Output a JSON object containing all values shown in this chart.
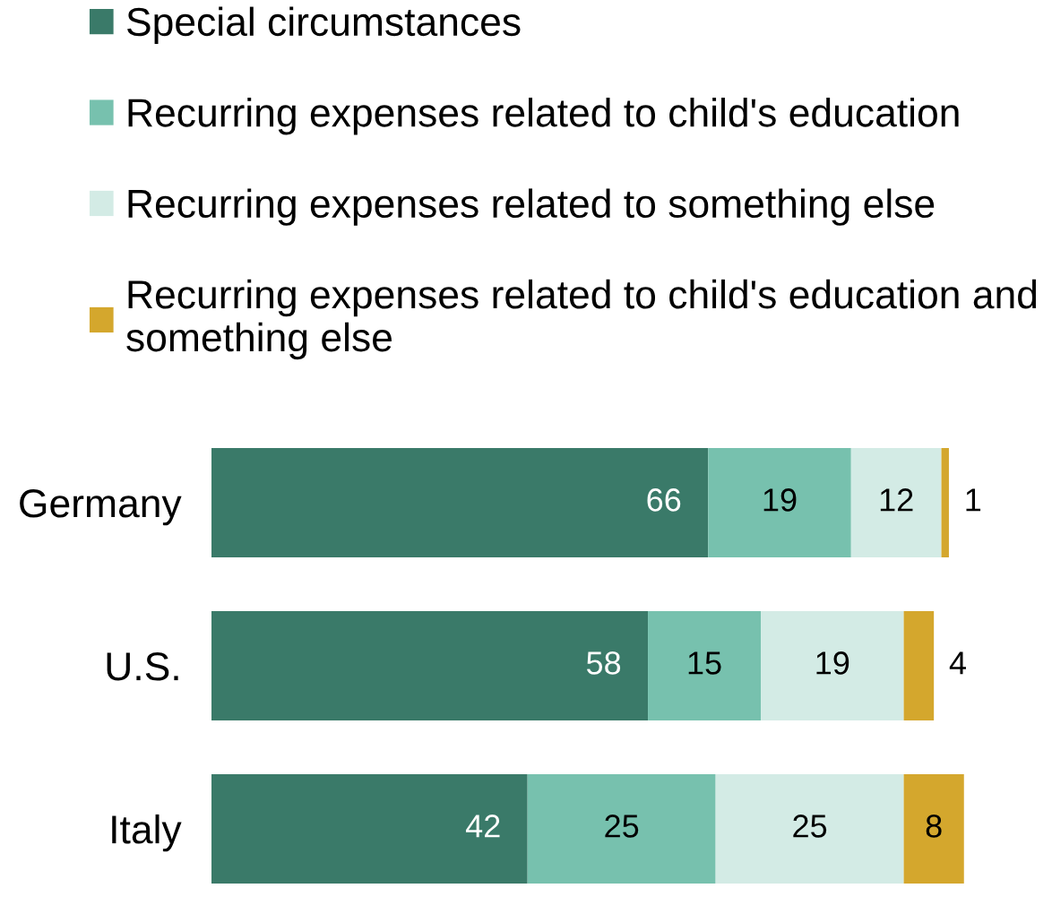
{
  "chart_data": {
    "type": "bar",
    "orientation": "horizontal",
    "stacked": true,
    "data_labels": true,
    "legend": "top",
    "grid": false,
    "categories": [
      "Germany",
      "U.S.",
      "Italy"
    ],
    "series": [
      {
        "name": "Special circumstances",
        "color": "#3a7a69",
        "values": [
          66,
          58,
          42
        ]
      },
      {
        "name": "Recurring expenses related to child's education",
        "color": "#77c1ae",
        "values": [
          19,
          15,
          25
        ]
      },
      {
        "name": "Recurring expenses related to something else",
        "color": "#d3ebe5",
        "values": [
          12,
          19,
          25
        ]
      },
      {
        "name": "Recurring expenses related to child's education and something else",
        "color": "#d4a72d",
        "values": [
          1,
          4,
          8
        ]
      }
    ]
  }
}
